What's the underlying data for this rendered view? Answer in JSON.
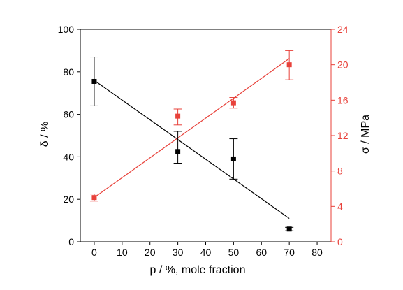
{
  "chart_data": {
    "type": "scatter",
    "xlabel": "p / %, mole fraction",
    "ylabel_left": "δ / %",
    "ylabel_right": "σ / MPa",
    "xlim": [
      -5,
      85
    ],
    "ylim_left": [
      0,
      100
    ],
    "ylim_right": [
      0,
      24
    ],
    "x_ticks": [
      0,
      10,
      20,
      30,
      40,
      50,
      60,
      70,
      80
    ],
    "y_left_ticks": [
      0,
      20,
      40,
      60,
      80,
      100
    ],
    "y_right_ticks": [
      0,
      4,
      8,
      12,
      16,
      20,
      24
    ],
    "grid": false,
    "legend": "none",
    "series": [
      {
        "axis": "left",
        "color": "#000000",
        "marker": "square",
        "x": [
          0,
          30,
          50,
          70
        ],
        "y": [
          75.5,
          42.5,
          39,
          6
        ],
        "err_low": [
          11.5,
          5.5,
          9.5,
          0.8
        ],
        "err_high": [
          11.5,
          9.5,
          9.5,
          0.8
        ],
        "fit": {
          "x": [
            0,
            70
          ],
          "y": [
            76,
            11
          ]
        }
      },
      {
        "axis": "right",
        "color": "#e8413a",
        "marker": "square",
        "x": [
          0,
          30,
          50,
          70
        ],
        "y": [
          5,
          14.2,
          15.7,
          20
        ],
        "err_low": [
          0.4,
          1,
          0.6,
          1.7
        ],
        "err_high": [
          0.4,
          0.8,
          0.6,
          1.6
        ],
        "fit": {
          "x": [
            0,
            70
          ],
          "y": [
            5,
            20.7
          ]
        }
      }
    ]
  }
}
